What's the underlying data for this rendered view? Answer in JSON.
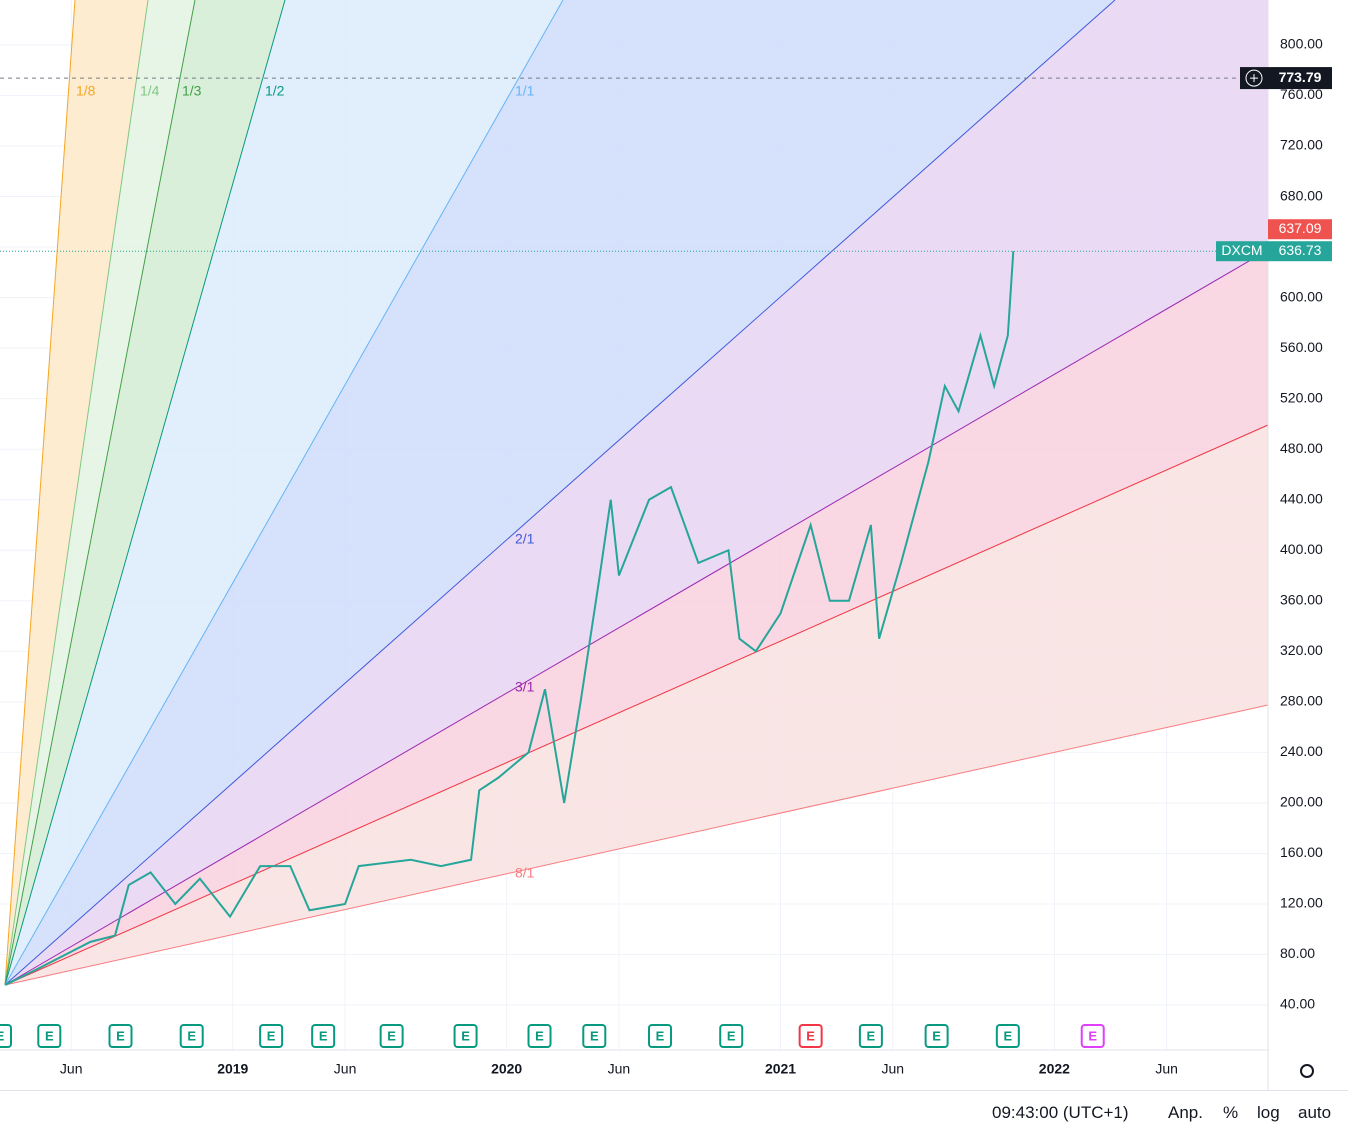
{
  "chart_data": {
    "type": "line",
    "symbol": "DXCM",
    "x": [
      2018.17,
      2018.3,
      2018.48,
      2018.57,
      2018.62,
      2018.7,
      2018.79,
      2018.88,
      2018.99,
      2019.1,
      2019.21,
      2019.28,
      2019.41,
      2019.46,
      2019.65,
      2019.76,
      2019.87,
      2019.9,
      2019.97,
      2020.08,
      2020.14,
      2020.21,
      2020.27,
      2020.34,
      2020.38,
      2020.41,
      2020.52,
      2020.6,
      2020.7,
      2020.81,
      2020.85,
      2020.91,
      2021.0,
      2021.11,
      2021.18,
      2021.25,
      2021.33,
      2021.36,
      2021.44,
      2021.54,
      2021.6,
      2021.65,
      2021.73,
      2021.78,
      2021.83,
      2021.85
    ],
    "series": [
      {
        "name": "DXCM",
        "color": "#26a69a",
        "values": [
          56,
          70,
          90,
          95,
          135,
          145,
          120,
          140,
          110,
          150,
          150,
          115,
          120,
          150,
          155,
          150,
          155,
          210,
          220,
          240,
          290,
          200,
          280,
          380,
          440,
          380,
          440,
          450,
          390,
          400,
          330,
          320,
          350,
          420,
          360,
          360,
          420,
          330,
          390,
          470,
          530,
          510,
          570,
          530,
          570,
          636.73
        ]
      }
    ],
    "xlim": [
      2018.15,
      2022.78
    ],
    "xticks": [
      {
        "value": 2018.41,
        "label": "Jun"
      },
      {
        "value": 2019.0,
        "label": "2019"
      },
      {
        "value": 2019.41,
        "label": "Jun"
      },
      {
        "value": 2020.0,
        "label": "2020"
      },
      {
        "value": 2020.41,
        "label": "Jun"
      },
      {
        "value": 2021.0,
        "label": "2021"
      },
      {
        "value": 2021.41,
        "label": "Jun"
      },
      {
        "value": 2022.0,
        "label": "2022"
      },
      {
        "value": 2022.41,
        "label": "Jun"
      }
    ],
    "ylim": [
      4.4,
      835.6
    ],
    "yticks": [
      {
        "value": 40,
        "label": "40.00"
      },
      {
        "value": 80,
        "label": "80.00"
      },
      {
        "value": 120,
        "label": "120.00"
      },
      {
        "value": 160,
        "label": "160.00"
      },
      {
        "value": 200,
        "label": "200.00"
      },
      {
        "value": 240,
        "label": "240.00"
      },
      {
        "value": 280,
        "label": "280.00"
      },
      {
        "value": 320,
        "label": "320.00"
      },
      {
        "value": 360,
        "label": "360.00"
      },
      {
        "value": 400,
        "label": "400.00"
      },
      {
        "value": 440,
        "label": "440.00"
      },
      {
        "value": 480,
        "label": "480.00"
      },
      {
        "value": 520,
        "label": "520.00"
      },
      {
        "value": 560,
        "label": "560.00"
      },
      {
        "value": 600,
        "label": "600.00"
      },
      {
        "value": 640,
        "label": "640.00"
      },
      {
        "value": 680,
        "label": "680.00"
      },
      {
        "value": 720,
        "label": "720.00"
      },
      {
        "value": 760,
        "label": "760.00"
      },
      {
        "value": 800,
        "label": "800.00"
      }
    ],
    "grid": true,
    "crosshair": {
      "value": 773.79,
      "label": "773.79"
    },
    "last_price": {
      "value": 636.73,
      "label": "636.73"
    },
    "high_price": {
      "value": 637.09,
      "label": "637.09"
    },
    "earnings": {
      "label": "E",
      "x": [
        2018.15,
        2018.33,
        2018.59,
        2018.85,
        2019.14,
        2019.33,
        2019.58,
        2019.85,
        2020.12,
        2020.32,
        2020.56,
        2020.82,
        2021.11,
        2021.33,
        2021.57,
        2021.83,
        2022.14
      ]
    },
    "fan": [
      {
        "label": "1/8",
        "color": "#f5a623"
      },
      {
        "label": "1/4",
        "color": "#81c784"
      },
      {
        "label": "1/3",
        "color": "#43a047"
      },
      {
        "label": "1/2",
        "color": "#089981"
      },
      {
        "label": "1/1",
        "color": "#64b5f6"
      },
      {
        "label": "2/1",
        "color": "#3f5bd8"
      },
      {
        "label": "3/1",
        "color": "#9c27b0"
      },
      {
        "label": "8/1",
        "color": "#f77c80"
      }
    ]
  },
  "status_bar": {
    "time": "09:43:00 (UTC+1)",
    "adjust": "Anp.",
    "percent": "%",
    "log": "log",
    "auto": "auto"
  }
}
